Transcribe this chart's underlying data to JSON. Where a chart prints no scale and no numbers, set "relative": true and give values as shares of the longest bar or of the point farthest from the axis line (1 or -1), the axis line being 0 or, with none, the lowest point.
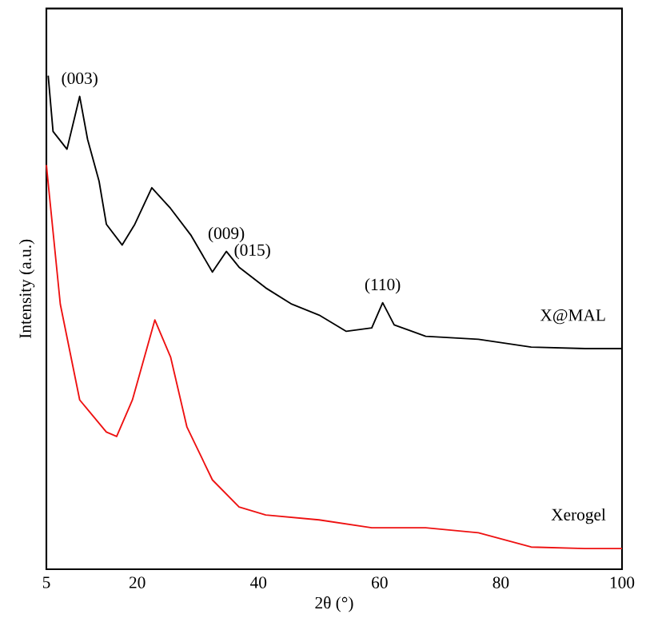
{
  "chart_data": {
    "type": "line",
    "relative": true,
    "xlabel": "2θ (°)",
    "ylabel": "Intensity (a.u.)",
    "xlim": [
      5,
      100
    ],
    "xticks": [
      5,
      20,
      40,
      60,
      80,
      100
    ],
    "series": [
      {
        "name": "X@MAL",
        "color": "#000000",
        "x": [
          5.3,
          6.1,
          8.4,
          10.5,
          11.8,
          13.7,
          14.9,
          17.5,
          19.6,
          22.4,
          25.5,
          28.9,
          32.4,
          34.7,
          36.8,
          41.2,
          45.5,
          50,
          54.5,
          58.7,
          60.5,
          62.4,
          67.6,
          76.3,
          85,
          93.9,
          100
        ],
        "values": [
          1.0,
          0.887,
          0.851,
          0.958,
          0.871,
          0.786,
          0.699,
          0.657,
          0.699,
          0.773,
          0.731,
          0.676,
          0.602,
          0.644,
          0.612,
          0.57,
          0.537,
          0.515,
          0.482,
          0.489,
          0.54,
          0.495,
          0.472,
          0.466,
          0.45,
          0.447,
          0.447
        ]
      },
      {
        "name": "Xerogel",
        "color": "#ee1111",
        "x": [
          5,
          7.3,
          10.5,
          14.9,
          16.6,
          19.2,
          22.9,
          25.5,
          28.2,
          32.4,
          36.8,
          41.2,
          50,
          58.7,
          67.6,
          76.3,
          85,
          93.9,
          100
        ],
        "values": [
          0.819,
          0.537,
          0.343,
          0.278,
          0.269,
          0.343,
          0.505,
          0.43,
          0.288,
          0.181,
          0.126,
          0.11,
          0.1,
          0.084,
          0.084,
          0.074,
          0.045,
          0.042,
          0.042
        ]
      }
    ],
    "annotations": [
      {
        "text": "(003)",
        "x": 10.5,
        "y": 0.958
      },
      {
        "text": "(009)",
        "x": 34.7,
        "y": 0.644
      },
      {
        "text": "(015)",
        "x": 39,
        "y": 0.61
      },
      {
        "text": "(110)",
        "x": 60.5,
        "y": 0.54
      }
    ]
  }
}
